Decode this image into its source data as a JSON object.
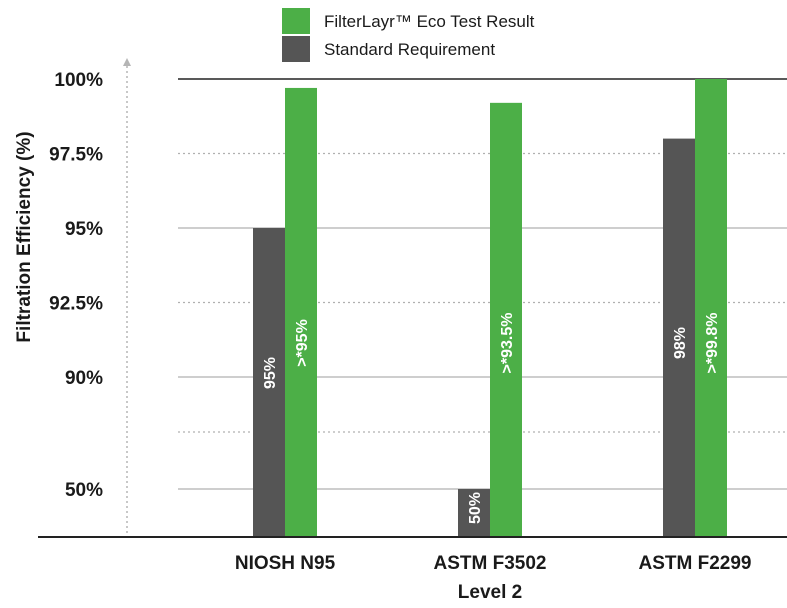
{
  "chart_data": {
    "type": "bar",
    "categories": [
      "NIOSH N95",
      "ASTM F3502",
      "ASTM F2299"
    ],
    "category_sublabels": [
      "",
      "Level 2",
      ""
    ],
    "ylabel": "Filtration Efficiency (%)",
    "y_ticks": [
      "100%",
      "97.5%",
      "95%",
      "92.5%",
      "90%",
      "50%"
    ],
    "y_scale": "non-linear (broken axis: 50% → 90% compressed)",
    "grid": true,
    "legend_position": "top",
    "series": [
      {
        "name": "Standard Requirement",
        "color": "#555555",
        "values": [
          95,
          50,
          98
        ],
        "labels": [
          "95%",
          "50%",
          "98%"
        ]
      },
      {
        "name": "FilterLayr™ Eco Test Result",
        "color": "#4caf47",
        "values": [
          99.7,
          99.2,
          100
        ],
        "labels": [
          ">*95%",
          ">*93.5%",
          ">*99.8%"
        ]
      }
    ]
  }
}
